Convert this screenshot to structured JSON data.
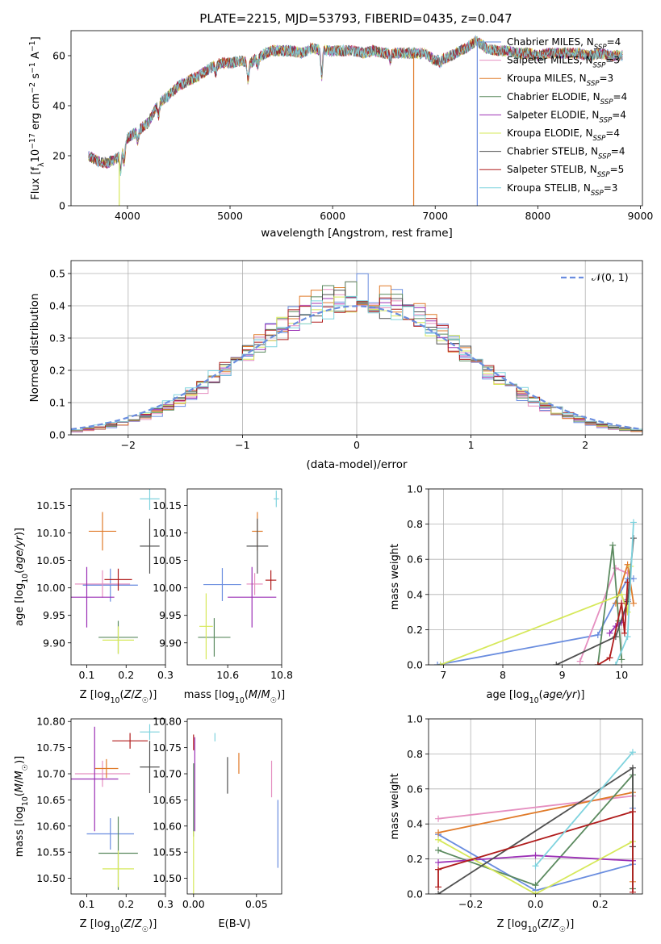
{
  "figure_title": "PLATE=2215, MJD=53793, FIBERID=0435, z=0.047",
  "series": [
    {
      "model": "Chabrier MILES",
      "nssp": "4",
      "color": "#6a8ddf"
    },
    {
      "model": "Salpeter MILES",
      "nssp": "3",
      "color": "#e58fc0"
    },
    {
      "model": "Kroupa MILES",
      "nssp": "3",
      "color": "#e07b2a"
    },
    {
      "model": "Chabrier ELODIE",
      "nssp": "4",
      "color": "#5b8a5f"
    },
    {
      "model": "Salpeter ELODIE",
      "nssp": "4",
      "color": "#9b30b5"
    },
    {
      "model": "Kroupa ELODIE",
      "nssp": "4",
      "color": "#d6e85a"
    },
    {
      "model": "Chabrier STELIB",
      "nssp": "4",
      "color": "#505050"
    },
    {
      "model": "Salpeter STELIB",
      "nssp": "5",
      "color": "#b01c1c"
    },
    {
      "model": "Kroupa STELIB",
      "nssp": "3",
      "color": "#7fd3de"
    }
  ],
  "chart_data": [
    {
      "type": "line",
      "id": "spectrum",
      "title": "PLATE=2215, MJD=53793, FIBERID=0435, z=0.047",
      "xlabel": "wavelength [Angstrom, rest frame]",
      "ylabel": "Flux [f_λ 10^-17 erg cm^-2 s^-1 A^-1]",
      "xlim": [
        3450,
        9020
      ],
      "ylim": [
        0,
        70
      ],
      "xticks": [
        4000,
        5000,
        6000,
        7000,
        8000,
        9000
      ],
      "yticks": [
        0,
        20,
        40,
        60
      ],
      "envelope": [
        [
          3620,
          20
        ],
        [
          3700,
          18
        ],
        [
          3800,
          17
        ],
        [
          3900,
          19
        ],
        [
          4000,
          27
        ],
        [
          4100,
          30
        ],
        [
          4200,
          33
        ],
        [
          4300,
          41
        ],
        [
          4400,
          44
        ],
        [
          4500,
          48
        ],
        [
          4600,
          50
        ],
        [
          4700,
          52
        ],
        [
          4800,
          55
        ],
        [
          4900,
          57
        ],
        [
          5000,
          57
        ],
        [
          5100,
          58
        ],
        [
          5200,
          57
        ],
        [
          5300,
          60
        ],
        [
          5400,
          62
        ],
        [
          5500,
          62
        ],
        [
          5600,
          62
        ],
        [
          5700,
          61
        ],
        [
          5800,
          63
        ],
        [
          5900,
          62
        ],
        [
          6000,
          62
        ],
        [
          6100,
          62
        ],
        [
          6200,
          62
        ],
        [
          6300,
          61
        ],
        [
          6400,
          62
        ],
        [
          6500,
          61
        ],
        [
          6600,
          61
        ],
        [
          6700,
          61
        ],
        [
          6800,
          61
        ],
        [
          6900,
          61
        ],
        [
          7000,
          58
        ],
        [
          7100,
          59
        ],
        [
          7200,
          61
        ],
        [
          7300,
          63
        ],
        [
          7400,
          66
        ],
        [
          7500,
          63
        ],
        [
          7600,
          62
        ],
        [
          7700,
          62
        ],
        [
          7800,
          61
        ],
        [
          7900,
          61
        ],
        [
          8000,
          60
        ],
        [
          8100,
          61
        ],
        [
          8200,
          61
        ],
        [
          8300,
          61
        ],
        [
          8400,
          61
        ],
        [
          8500,
          60
        ],
        [
          8600,
          61
        ],
        [
          8700,
          60
        ],
        [
          8800,
          60
        ]
      ],
      "grid": false,
      "legend": "right"
    },
    {
      "type": "histogram",
      "id": "residuals",
      "xlabel": "(data-model)/error",
      "ylabel": "Normed distribution",
      "xlim": [
        -2.5,
        2.5
      ],
      "ylim": [
        0,
        0.54
      ],
      "xticks": [
        -2,
        -1,
        0,
        1,
        2
      ],
      "yticks": [
        0.0,
        0.1,
        0.2,
        0.3,
        0.4,
        0.5
      ],
      "reference_label": "𝒩(0, 1)",
      "grid": true,
      "legend": "top-right"
    },
    {
      "type": "scatter",
      "id": "age_vs_Z",
      "xlabel": "Z [log10(Z/Z☉)]",
      "ylabel": "age [log10(age/yr)]",
      "xlim": [
        0.06,
        0.3
      ],
      "ylim": [
        9.86,
        10.18
      ],
      "xticks": [
        0.1,
        0.2,
        0.3
      ],
      "yticks": [
        9.9,
        9.95,
        10.0,
        10.05,
        10.1,
        10.15
      ],
      "points": [
        {
          "x": 0.16,
          "y": 10.005,
          "xerr": 0.07,
          "yerr": 0.03
        },
        {
          "x": 0.14,
          "y": 10.007,
          "xerr": 0.07,
          "yerr": 0.025
        },
        {
          "x": 0.14,
          "y": 10.103,
          "xerr": 0.035,
          "yerr": 0.035
        },
        {
          "x": 0.18,
          "y": 9.91,
          "xerr": 0.05,
          "yerr": 0.03
        },
        {
          "x": 0.1,
          "y": 9.983,
          "xerr": 0.07,
          "yerr": 0.055
        },
        {
          "x": 0.18,
          "y": 9.905,
          "xerr": 0.04,
          "yerr": 0.025
        },
        {
          "x": 0.26,
          "y": 10.076,
          "xerr": 0.025,
          "yerr": 0.05
        },
        {
          "x": 0.18,
          "y": 10.015,
          "xerr": 0.035,
          "yerr": 0.02
        },
        {
          "x": 0.26,
          "y": 10.162,
          "xerr": 0.025,
          "yerr": 0.02
        }
      ]
    },
    {
      "type": "scatter",
      "id": "age_vs_mass",
      "xlabel": "mass [log10(M/M☉)]",
      "ylabel": "",
      "xlim": [
        10.45,
        10.8
      ],
      "ylim": [
        9.86,
        10.18
      ],
      "xticks": [
        10.6,
        10.8
      ],
      "yticks": [
        9.9,
        9.95,
        10.0,
        10.05,
        10.1,
        10.15
      ],
      "points": [
        {
          "x": 10.58,
          "y": 10.006,
          "xerr": 0.07,
          "yerr": 0.03
        },
        {
          "x": 10.7,
          "y": 10.007,
          "xerr": 0.03,
          "yerr": 0.02
        },
        {
          "x": 10.71,
          "y": 10.103,
          "xerr": 0.02,
          "yerr": 0.035
        },
        {
          "x": 10.55,
          "y": 9.91,
          "xerr": 0.06,
          "yerr": 0.035
        },
        {
          "x": 10.69,
          "y": 9.983,
          "xerr": 0.09,
          "yerr": 0.055
        },
        {
          "x": 10.52,
          "y": 9.93,
          "xerr": 0.025,
          "yerr": 0.06
        },
        {
          "x": 10.71,
          "y": 10.076,
          "xerr": 0.04,
          "yerr": 0.05
        },
        {
          "x": 10.76,
          "y": 10.014,
          "xerr": 0.02,
          "yerr": 0.018
        },
        {
          "x": 10.78,
          "y": 10.162,
          "xerr": 0.01,
          "yerr": 0.015
        }
      ]
    },
    {
      "type": "line",
      "id": "mass_weight_vs_age",
      "xlabel": "age  [log10(age/yr)]",
      "ylabel": "mass weight",
      "xlim": [
        6.75,
        10.35
      ],
      "ylim": [
        0,
        1.0
      ],
      "xticks": [
        7,
        8,
        9,
        10
      ],
      "yticks": [
        0.0,
        0.2,
        0.4,
        0.6,
        0.8,
        1.0
      ],
      "grid": true
    },
    {
      "type": "scatter",
      "id": "mass_vs_Z",
      "xlabel": "Z [log10(Z/Z☉)]",
      "ylabel": "mass [log10(M/M☉)]",
      "xlim": [
        0.06,
        0.3
      ],
      "ylim": [
        10.47,
        10.805
      ],
      "xticks": [
        0.1,
        0.2,
        0.3
      ],
      "yticks": [
        10.5,
        10.55,
        10.6,
        10.65,
        10.7,
        10.75,
        10.8
      ],
      "points": [
        {
          "x": 0.16,
          "y": 10.585,
          "xerr": 0.06,
          "yerr": 0.03
        },
        {
          "x": 0.14,
          "y": 10.7,
          "xerr": 0.07,
          "yerr": 0.025
        },
        {
          "x": 0.15,
          "y": 10.71,
          "xerr": 0.03,
          "yerr": 0.018
        },
        {
          "x": 0.18,
          "y": 10.548,
          "xerr": 0.05,
          "yerr": 0.07
        },
        {
          "x": 0.12,
          "y": 10.69,
          "xerr": 0.06,
          "yerr": 0.1
        },
        {
          "x": 0.18,
          "y": 10.518,
          "xerr": 0.04,
          "yerr": 0.035
        },
        {
          "x": 0.26,
          "y": 10.713,
          "xerr": 0.025,
          "yerr": 0.05
        },
        {
          "x": 0.21,
          "y": 10.763,
          "xerr": 0.045,
          "yerr": 0.015
        },
        {
          "x": 0.26,
          "y": 10.78,
          "xerr": 0.025,
          "yerr": 0.015
        }
      ]
    },
    {
      "type": "scatter",
      "id": "mass_vs_ebv",
      "xlabel": "E(B-V)",
      "ylabel": "",
      "xlim": [
        -0.005,
        0.07
      ],
      "ylim": [
        10.47,
        10.805
      ],
      "xticks": [
        0.0,
        0.05
      ],
      "yticks": [
        10.5,
        10.55,
        10.6,
        10.65,
        10.7,
        10.75,
        10.8
      ],
      "points": [
        {
          "x": 0.067,
          "y": 10.585,
          "xerr": 0,
          "yerr": 0.065
        },
        {
          "x": 0.062,
          "y": 10.69,
          "xerr": 0,
          "yerr": 0.035
        },
        {
          "x": 0.036,
          "y": 10.72,
          "xerr": 0,
          "yerr": 0.02
        },
        {
          "x": 0.0,
          "y": 10.65,
          "xerr": 0,
          "yerr": 0.07
        },
        {
          "x": 0.001,
          "y": 10.68,
          "xerr": 0,
          "yerr": 0.09
        },
        {
          "x": 0.0,
          "y": 10.53,
          "xerr": 0,
          "yerr": 0.06
        },
        {
          "x": 0.027,
          "y": 10.697,
          "xerr": 0,
          "yerr": 0.035
        },
        {
          "x": 0.0,
          "y": 10.76,
          "xerr": 0,
          "yerr": 0.015
        },
        {
          "x": 0.017,
          "y": 10.77,
          "xerr": 0,
          "yerr": 0.008
        }
      ]
    },
    {
      "type": "line",
      "id": "mass_weight_vs_Z",
      "xlabel": "Z [log10(Z/Z☉)]",
      "ylabel": "mass weight",
      "xlim": [
        -0.33,
        0.33
      ],
      "ylim": [
        0,
        1.0
      ],
      "xticks": [
        -0.2,
        0.0,
        0.2
      ],
      "yticks": [
        0.0,
        0.2,
        0.4,
        0.6,
        0.8,
        1.0
      ],
      "grid": true
    }
  ]
}
